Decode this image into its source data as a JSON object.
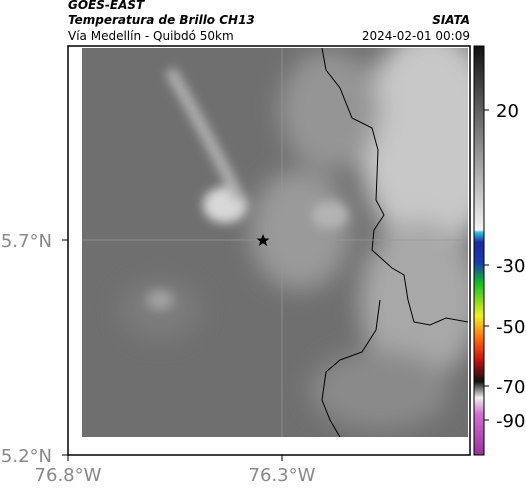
{
  "header": {
    "source": "GOES-EAST",
    "title": "Temperatura de Brillo CH13",
    "org": "SIATA",
    "route": "Vía Medellín - Quibdó 50km",
    "datetime": "2024-02-01 00:09"
  },
  "map": {
    "lat_labels": [
      "5.7°N",
      "5.2°N"
    ],
    "lon_labels": [
      "76.8°W",
      "76.3°W"
    ]
  },
  "colorbar": {
    "ticks": [
      20,
      -30,
      -50,
      -70,
      -90
    ]
  }
}
